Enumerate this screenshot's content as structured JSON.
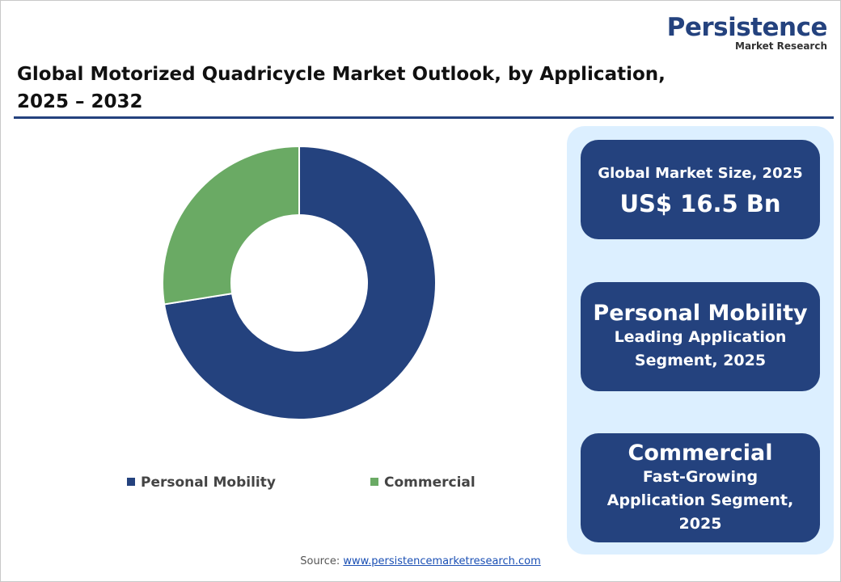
{
  "logo": {
    "name": "Persistence",
    "tagline": "Market Research"
  },
  "chart_data": {
    "type": "donut",
    "title": "Global Motorized Quadricycle Market Outlook, by Application, 2025 – 2032",
    "categories": [
      "Personal Mobility",
      "Commercial"
    ],
    "values": [
      72.5,
      27.5
    ],
    "colors": [
      "#24427e",
      "#6aaa64"
    ]
  },
  "cards": [
    {
      "label": "Global Market Size, 2025",
      "headline": "US$ 16.5 Bn"
    },
    {
      "headline": "Personal Mobility",
      "label": "Leading Application Segment, 2025"
    },
    {
      "headline": "Commercial",
      "label": "Fast-Growing Application Segment, 2025"
    }
  ],
  "source": {
    "label": "Source:",
    "url": "www.persistencemarketresearch.com"
  }
}
